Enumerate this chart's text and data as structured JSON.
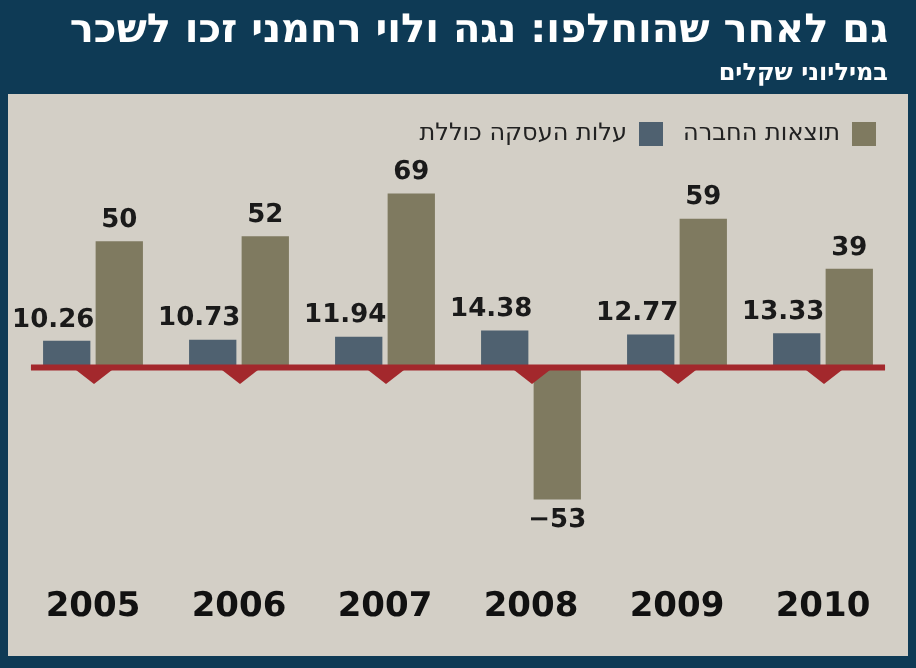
{
  "chart_data": {
    "type": "bar",
    "title": "גם לאחר שהוחלפו: נגה ולוי רחמני זכו לשכר",
    "subtitle": "במיליוני שקלים",
    "categories": [
      "2005",
      "2006",
      "2007",
      "2008",
      "2009",
      "2010"
    ],
    "series": [
      {
        "name": "עלות העסקה כוללת",
        "color": "#4f6170",
        "values": [
          10.26,
          10.73,
          11.94,
          14.38,
          12.77,
          13.33
        ]
      },
      {
        "name": "תוצאות החברה",
        "color": "#7f7a60",
        "values": [
          50,
          52,
          69,
          -53,
          59,
          39
        ]
      }
    ],
    "ref_lines": [
      {
        "axis": "y",
        "value": 0,
        "color": "#a3282c"
      }
    ],
    "data_labels": true,
    "legend": "top right",
    "grid": false
  }
}
